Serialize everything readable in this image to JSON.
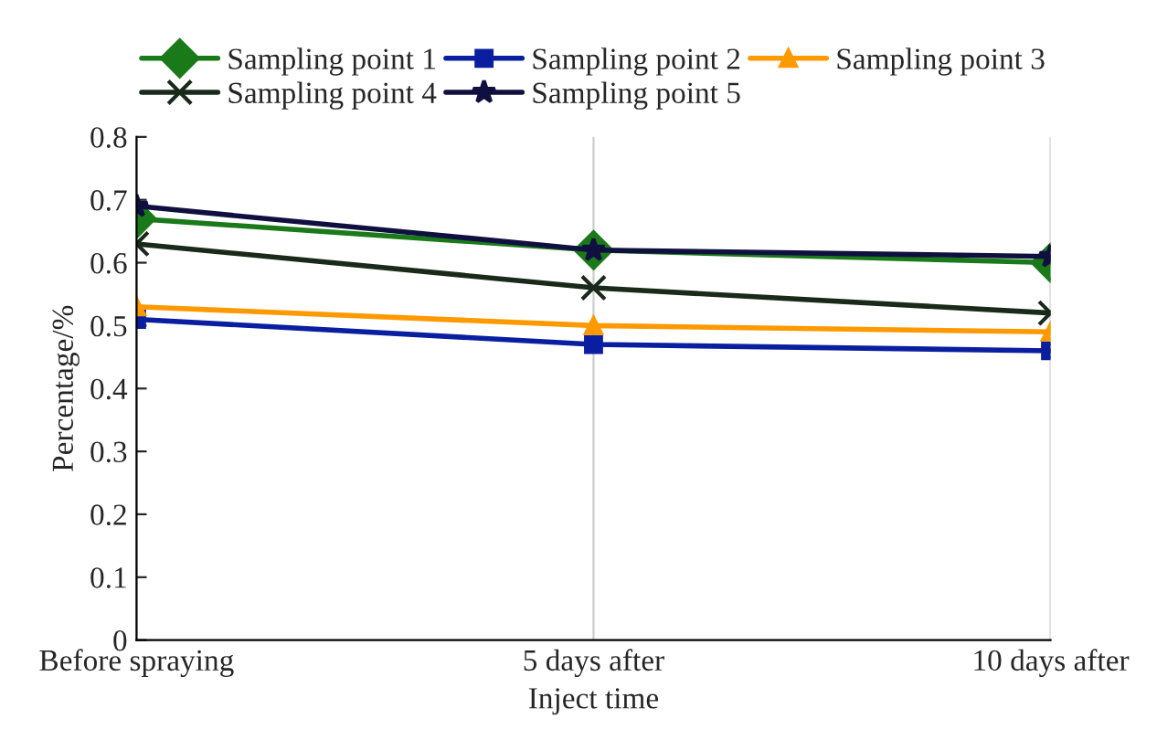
{
  "chart_data": {
    "type": "line",
    "xlabel": "Inject time",
    "ylabel": "Percentage/%",
    "categories": [
      "Before spraying",
      "5 days after",
      "10 days after"
    ],
    "series": [
      {
        "name": "Sampling point 1",
        "color": "#1a7a1a",
        "marker": "diamond",
        "values": [
          0.67,
          0.62,
          0.6
        ]
      },
      {
        "name": "Sampling point 2",
        "color": "#0a1ea0",
        "marker": "square",
        "values": [
          0.51,
          0.47,
          0.46
        ]
      },
      {
        "name": "Sampling point 3",
        "color": "#ff9900",
        "marker": "triangle",
        "values": [
          0.53,
          0.5,
          0.49
        ]
      },
      {
        "name": "Sampling point 4",
        "color": "#1a2a1a",
        "marker": "cross",
        "values": [
          0.63,
          0.56,
          0.52
        ]
      },
      {
        "name": "Sampling point 5",
        "color": "#101040",
        "marker": "star",
        "values": [
          0.69,
          0.62,
          0.61
        ]
      }
    ],
    "ylim": [
      0,
      0.8
    ],
    "yticks": [
      0,
      0.1,
      0.2,
      0.3,
      0.4,
      0.5,
      0.6,
      0.7,
      0.8
    ],
    "grid": "x",
    "legend": "top"
  }
}
